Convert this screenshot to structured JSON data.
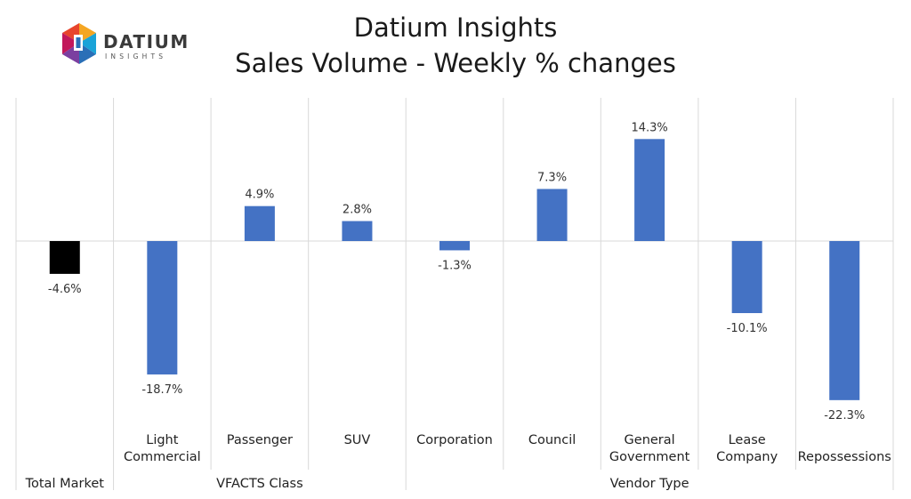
{
  "logo": {
    "name": "DATIUM",
    "sub": "INSIGHTS",
    "colors": [
      "#f5a623",
      "#e8452c",
      "#c2185b",
      "#7b3fa0",
      "#2a6fb7",
      "#1aa3d8",
      "#4caf50"
    ]
  },
  "title_line1": "Datium Insights",
  "title_line2": "Sales Volume - Weekly % changes",
  "chart_data": {
    "type": "bar",
    "categories": [
      {
        "lines": [
          "",
          ""
        ],
        "group": "Total Market",
        "value": -4.6,
        "label": "-4.6%",
        "color": "#000000"
      },
      {
        "lines": [
          "Light",
          "Commercial"
        ],
        "group": "VFACTS Class",
        "value": -18.7,
        "label": "-18.7%",
        "color": "#4472c4"
      },
      {
        "lines": [
          "Passenger",
          ""
        ],
        "group": "VFACTS Class",
        "value": 4.9,
        "label": "4.9%",
        "color": "#4472c4"
      },
      {
        "lines": [
          "SUV",
          ""
        ],
        "group": "VFACTS Class",
        "value": 2.8,
        "label": "2.8%",
        "color": "#4472c4"
      },
      {
        "lines": [
          "Corporation",
          ""
        ],
        "group": "Vendor Type",
        "value": -1.3,
        "label": "-1.3%",
        "color": "#4472c4"
      },
      {
        "lines": [
          "Council",
          ""
        ],
        "group": "Vendor Type",
        "value": 7.3,
        "label": "7.3%",
        "color": "#4472c4"
      },
      {
        "lines": [
          "General",
          "Government"
        ],
        "group": "Vendor Type",
        "value": 14.3,
        "label": "14.3%",
        "color": "#4472c4"
      },
      {
        "lines": [
          "Lease",
          "Company"
        ],
        "group": "Vendor Type",
        "value": -10.1,
        "label": "-10.1%",
        "color": "#4472c4"
      },
      {
        "lines": [
          "",
          "Repossessions"
        ],
        "group": "Vendor Type",
        "value": -22.3,
        "label": "-22.3%",
        "color": "#4472c4"
      }
    ],
    "groups": [
      {
        "name": "Total Market",
        "start": 0,
        "end": 0
      },
      {
        "name": "VFACTS Class",
        "start": 1,
        "end": 3
      },
      {
        "name": "Vendor Type",
        "start": 4,
        "end": 8
      }
    ],
    "ylim": [
      -25,
      20
    ],
    "grid": "vertical-category-separators"
  }
}
